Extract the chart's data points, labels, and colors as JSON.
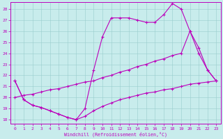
{
  "background_color": "#c8ecec",
  "line_color": "#bb00bb",
  "grid_color": "#99cccc",
  "xlabel": "Windchill (Refroidissement éolien,°C)",
  "xmin": 0,
  "xmax": 23,
  "ymin": 18,
  "ymax": 28,
  "yticks": [
    18,
    19,
    20,
    21,
    22,
    23,
    24,
    25,
    26,
    27,
    28
  ],
  "xticks": [
    0,
    1,
    2,
    3,
    4,
    5,
    6,
    7,
    8,
    9,
    10,
    11,
    12,
    13,
    14,
    15,
    16,
    17,
    18,
    19,
    20,
    21,
    22,
    23
  ],
  "line1_x": [
    0,
    1,
    2,
    3,
    4,
    5,
    6,
    7,
    8,
    9,
    10,
    11,
    12,
    13,
    14,
    15,
    16,
    17,
    18,
    19,
    20,
    21,
    22,
    23
  ],
  "line1_y": [
    21.5,
    19.8,
    19.3,
    19.1,
    18.8,
    18.5,
    18.2,
    18.0,
    18.3,
    18.8,
    19.2,
    19.5,
    19.8,
    20.0,
    20.2,
    20.4,
    20.5,
    20.7,
    20.8,
    21.0,
    21.2,
    21.3,
    21.4,
    21.5
  ],
  "line2_x": [
    0,
    1,
    2,
    3,
    4,
    5,
    6,
    7,
    8,
    9,
    10,
    11,
    12,
    13,
    14,
    15,
    16,
    17,
    18,
    19,
    20,
    21,
    22,
    23
  ],
  "line2_y": [
    21.5,
    19.8,
    19.3,
    19.1,
    18.8,
    18.5,
    18.2,
    18.0,
    19.0,
    22.5,
    25.5,
    27.2,
    27.2,
    27.2,
    27.0,
    26.8,
    26.8,
    27.5,
    28.5,
    28.0,
    26.0,
    24.0,
    22.5,
    21.5
  ],
  "line3_x": [
    0,
    1,
    2,
    3,
    4,
    5,
    6,
    7,
    8,
    9,
    10,
    11,
    12,
    13,
    14,
    15,
    16,
    17,
    18,
    19,
    20,
    21,
    22,
    23
  ],
  "line3_y": [
    20.0,
    20.2,
    20.3,
    20.5,
    20.7,
    20.8,
    21.0,
    21.2,
    21.4,
    21.5,
    21.8,
    22.0,
    22.3,
    22.5,
    22.8,
    23.0,
    23.3,
    23.5,
    23.8,
    24.0,
    26.0,
    24.5,
    22.5,
    21.5
  ]
}
